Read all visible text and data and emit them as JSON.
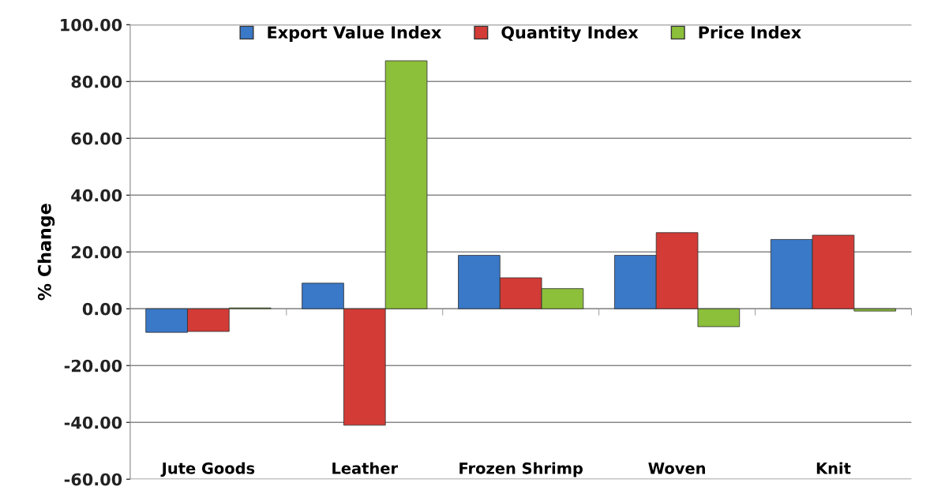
{
  "chart_data": {
    "type": "bar",
    "ylabel": "% Change",
    "categories": [
      "Jute Goods",
      "Leather",
      "Frozen Shrimp",
      "Woven",
      "Knit"
    ],
    "series": [
      {
        "name": "Export Value Index",
        "color": "#3a78c8",
        "values": [
          -8.3,
          9.0,
          18.8,
          18.8,
          24.4
        ]
      },
      {
        "name": "Quantity Index",
        "color": "#d23b36",
        "values": [
          -8.0,
          -41.0,
          10.9,
          26.8,
          25.9
        ]
      },
      {
        "name": "Price Index",
        "color": "#8cbf3a",
        "values": [
          0.3,
          87.3,
          7.1,
          -6.3,
          -0.8
        ]
      }
    ],
    "ylim": [
      -60,
      100
    ],
    "yticks": [
      {
        "value": -60,
        "label": "-60.00"
      },
      {
        "value": -40,
        "label": "-40.00"
      },
      {
        "value": -20,
        "label": "-20.00"
      },
      {
        "value": 0,
        "label": "0.00"
      },
      {
        "value": 20,
        "label": "20.00"
      },
      {
        "value": 40,
        "label": "40.00"
      },
      {
        "value": 60,
        "label": "60.00"
      },
      {
        "value": 80,
        "label": "80.00"
      },
      {
        "value": 100,
        "label": "100.00"
      }
    ],
    "grid": "y",
    "legend": "top"
  }
}
